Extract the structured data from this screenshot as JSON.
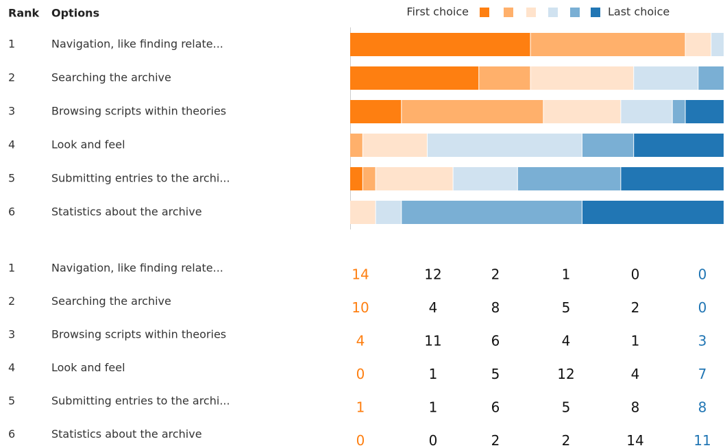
{
  "chart_data": {
    "type": "bar",
    "orientation": "horizontal",
    "stacked": true,
    "rank_header": "Rank",
    "options_header": "Options",
    "legend_first": "First choice",
    "legend_last": "Last choice",
    "ranks": [
      1,
      2,
      3,
      4,
      5,
      6
    ],
    "categories": [
      "Navigation, like finding relate...",
      "Searching the archive",
      "Browsing scripts within theories",
      "Look and feel",
      "Submitting entries to the archi...",
      "Statistics about the archive"
    ],
    "series": [
      {
        "color": "#fe7f11",
        "values": [
          14,
          10,
          4,
          0,
          1,
          0
        ]
      },
      {
        "color": "#ffb06b",
        "values": [
          12,
          4,
          11,
          1,
          1,
          0
        ]
      },
      {
        "color": "#ffe3cc",
        "values": [
          2,
          8,
          6,
          5,
          6,
          2
        ]
      },
      {
        "color": "#d0e2f0",
        "values": [
          1,
          5,
          4,
          12,
          5,
          2
        ]
      },
      {
        "color": "#7aafd4",
        "values": [
          0,
          2,
          1,
          4,
          8,
          14
        ]
      },
      {
        "color": "#2176b4",
        "values": [
          0,
          0,
          3,
          7,
          8,
          11
        ]
      }
    ]
  }
}
